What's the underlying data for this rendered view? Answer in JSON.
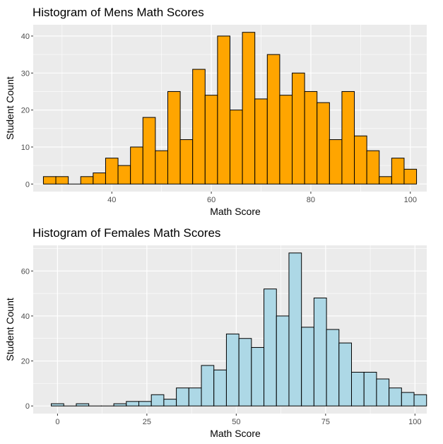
{
  "chart_data": [
    {
      "type": "bar",
      "title": "Histogram of Mens Math Scores",
      "xlabel": "Math Score",
      "ylabel": "Student Count",
      "fill_color": "#FFA500",
      "panel_color": "#EBEBEB",
      "grid": true,
      "binwidth": 2.5,
      "bin_centers": [
        27.5,
        30,
        32.5,
        35,
        37.5,
        40,
        42.5,
        45,
        47.5,
        50,
        52.5,
        55,
        57.5,
        60,
        62.5,
        65,
        67.5,
        70,
        72.5,
        75,
        77.5,
        80,
        82.5,
        85,
        87.5,
        90,
        92.5,
        95,
        97.5,
        100
      ],
      "values": [
        2,
        2,
        0,
        2,
        3,
        7,
        5,
        10,
        18,
        9,
        25,
        12,
        31,
        24,
        40,
        20,
        41,
        23,
        35,
        24,
        30,
        25,
        22,
        12,
        25,
        13,
        9,
        2,
        7,
        4
      ],
      "xlim": [
        24.2,
        103.3
      ],
      "ylim": [
        -2.05,
        43.05
      ],
      "xticks": [
        40,
        60,
        80,
        100
      ],
      "yticks": [
        0,
        10,
        20,
        30,
        40
      ]
    },
    {
      "type": "bar",
      "title": "Histogram of Females Math Scores",
      "xlabel": "Math Score",
      "ylabel": "Student Count",
      "fill_color": "#ADD8E6",
      "panel_color": "#EBEBEB",
      "grid": true,
      "binwidth": 3.5,
      "bin_centers": [
        0,
        3.5,
        7,
        10.5,
        14,
        17.5,
        21,
        24.5,
        28,
        31.5,
        35,
        38.5,
        42,
        45.5,
        49,
        52.5,
        56,
        59.5,
        63,
        66.5,
        70,
        73.5,
        77,
        80.5,
        84,
        87.5,
        91,
        94.5,
        98,
        101.5
      ],
      "values": [
        1,
        0,
        1,
        0,
        0,
        1,
        2,
        2,
        5,
        3,
        8,
        8,
        18,
        16,
        32,
        30,
        26,
        52,
        40,
        68,
        35,
        48,
        34,
        28,
        15,
        15,
        12,
        8,
        6,
        5
      ],
      "xlim": [
        -6.8,
        103.3
      ],
      "ylim": [
        -3.4,
        71.4
      ],
      "xticks": [
        0,
        25,
        50,
        75,
        100
      ],
      "yticks": [
        0,
        20,
        40,
        60
      ]
    }
  ]
}
